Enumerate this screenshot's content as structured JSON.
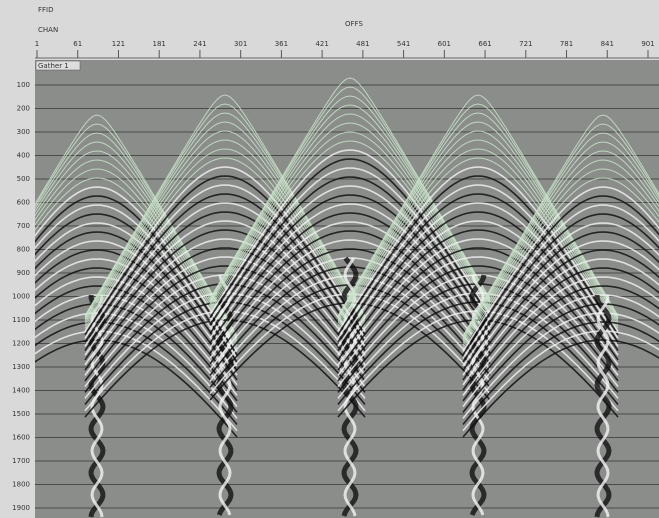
{
  "header": {
    "row1_label": "FFID",
    "row2_label": "CHAN",
    "center_label": "OFFS"
  },
  "x_axis": {
    "labels": [
      "1",
      "61",
      "121",
      "181",
      "241",
      "301",
      "361",
      "421",
      "481",
      "541",
      "601",
      "661",
      "721",
      "781",
      "841",
      "901"
    ]
  },
  "y_axis": {
    "labels": [
      "100",
      "200",
      "300",
      "400",
      "500",
      "600",
      "700",
      "800",
      "900",
      "1000",
      "1100",
      "1200",
      "1300",
      "1400",
      "1500",
      "1600",
      "1700",
      "1800",
      "1900"
    ]
  },
  "panel": {
    "label": "Gather 1"
  }
}
